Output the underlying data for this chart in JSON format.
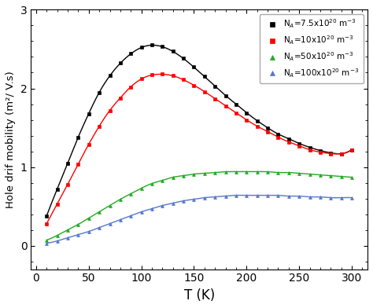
{
  "title": "",
  "xlabel": "T (K)",
  "ylabel": "Hole drif mobility (m²/ V.s)",
  "xlim": [
    -5,
    315
  ],
  "ylim": [
    -0.3,
    3.0
  ],
  "yticks": [
    0,
    1,
    2,
    3
  ],
  "xticks": [
    0,
    50,
    100,
    150,
    200,
    250,
    300
  ],
  "series": [
    {
      "label": "N$_A$=7.5x10$^{20}$ m$^{-3}$",
      "color": "black",
      "marker": "s",
      "T": [
        10,
        20,
        30,
        40,
        50,
        60,
        70,
        80,
        90,
        100,
        110,
        120,
        130,
        140,
        150,
        160,
        170,
        180,
        190,
        200,
        210,
        220,
        230,
        240,
        250,
        260,
        270,
        280,
        290,
        300
      ],
      "mu": [
        0.38,
        0.72,
        1.05,
        1.38,
        1.68,
        1.95,
        2.16,
        2.32,
        2.44,
        2.52,
        2.55,
        2.53,
        2.47,
        2.38,
        2.27,
        2.15,
        2.03,
        1.91,
        1.8,
        1.69,
        1.59,
        1.5,
        1.42,
        1.36,
        1.3,
        1.25,
        1.21,
        1.18,
        1.17,
        1.22
      ]
    },
    {
      "label": "N$_A$=10x10$^{20}$ m$^{-3}$",
      "color": "red",
      "marker": "s",
      "T": [
        10,
        20,
        30,
        40,
        50,
        60,
        70,
        80,
        90,
        100,
        110,
        120,
        130,
        140,
        150,
        160,
        170,
        180,
        190,
        200,
        210,
        220,
        230,
        240,
        250,
        260,
        270,
        280,
        290,
        300
      ],
      "mu": [
        0.28,
        0.53,
        0.78,
        1.04,
        1.29,
        1.52,
        1.72,
        1.88,
        2.02,
        2.12,
        2.17,
        2.18,
        2.16,
        2.11,
        2.04,
        1.96,
        1.87,
        1.78,
        1.69,
        1.6,
        1.52,
        1.45,
        1.38,
        1.32,
        1.27,
        1.22,
        1.19,
        1.17,
        1.17,
        1.22
      ]
    },
    {
      "label": "N$_A$=50x10$^{20}$ m$^{-3}$",
      "color": "#22aa22",
      "marker": "^",
      "T": [
        10,
        20,
        30,
        40,
        50,
        60,
        70,
        80,
        90,
        100,
        110,
        120,
        130,
        140,
        150,
        160,
        170,
        180,
        190,
        200,
        210,
        220,
        230,
        240,
        250,
        260,
        270,
        280,
        290,
        300
      ],
      "mu": [
        0.07,
        0.13,
        0.2,
        0.27,
        0.35,
        0.43,
        0.51,
        0.59,
        0.66,
        0.73,
        0.79,
        0.83,
        0.87,
        0.89,
        0.91,
        0.92,
        0.93,
        0.94,
        0.94,
        0.94,
        0.94,
        0.94,
        0.93,
        0.93,
        0.92,
        0.91,
        0.9,
        0.89,
        0.88,
        0.87
      ]
    },
    {
      "label": "N$_A$=100x10$^{20}$ m$^{-3}$",
      "color": "#5577cc",
      "marker": "^",
      "T": [
        10,
        20,
        30,
        40,
        50,
        60,
        70,
        80,
        90,
        100,
        110,
        120,
        130,
        140,
        150,
        160,
        170,
        180,
        190,
        200,
        210,
        220,
        230,
        240,
        250,
        260,
        270,
        280,
        290,
        300
      ],
      "mu": [
        0.03,
        0.06,
        0.1,
        0.14,
        0.18,
        0.23,
        0.28,
        0.33,
        0.38,
        0.43,
        0.47,
        0.51,
        0.54,
        0.57,
        0.59,
        0.61,
        0.62,
        0.63,
        0.64,
        0.64,
        0.64,
        0.64,
        0.64,
        0.63,
        0.63,
        0.62,
        0.62,
        0.61,
        0.61,
        0.61
      ]
    }
  ],
  "legend_loc": "upper right",
  "figsize": [
    4.74,
    3.92
  ],
  "dpi": 100
}
